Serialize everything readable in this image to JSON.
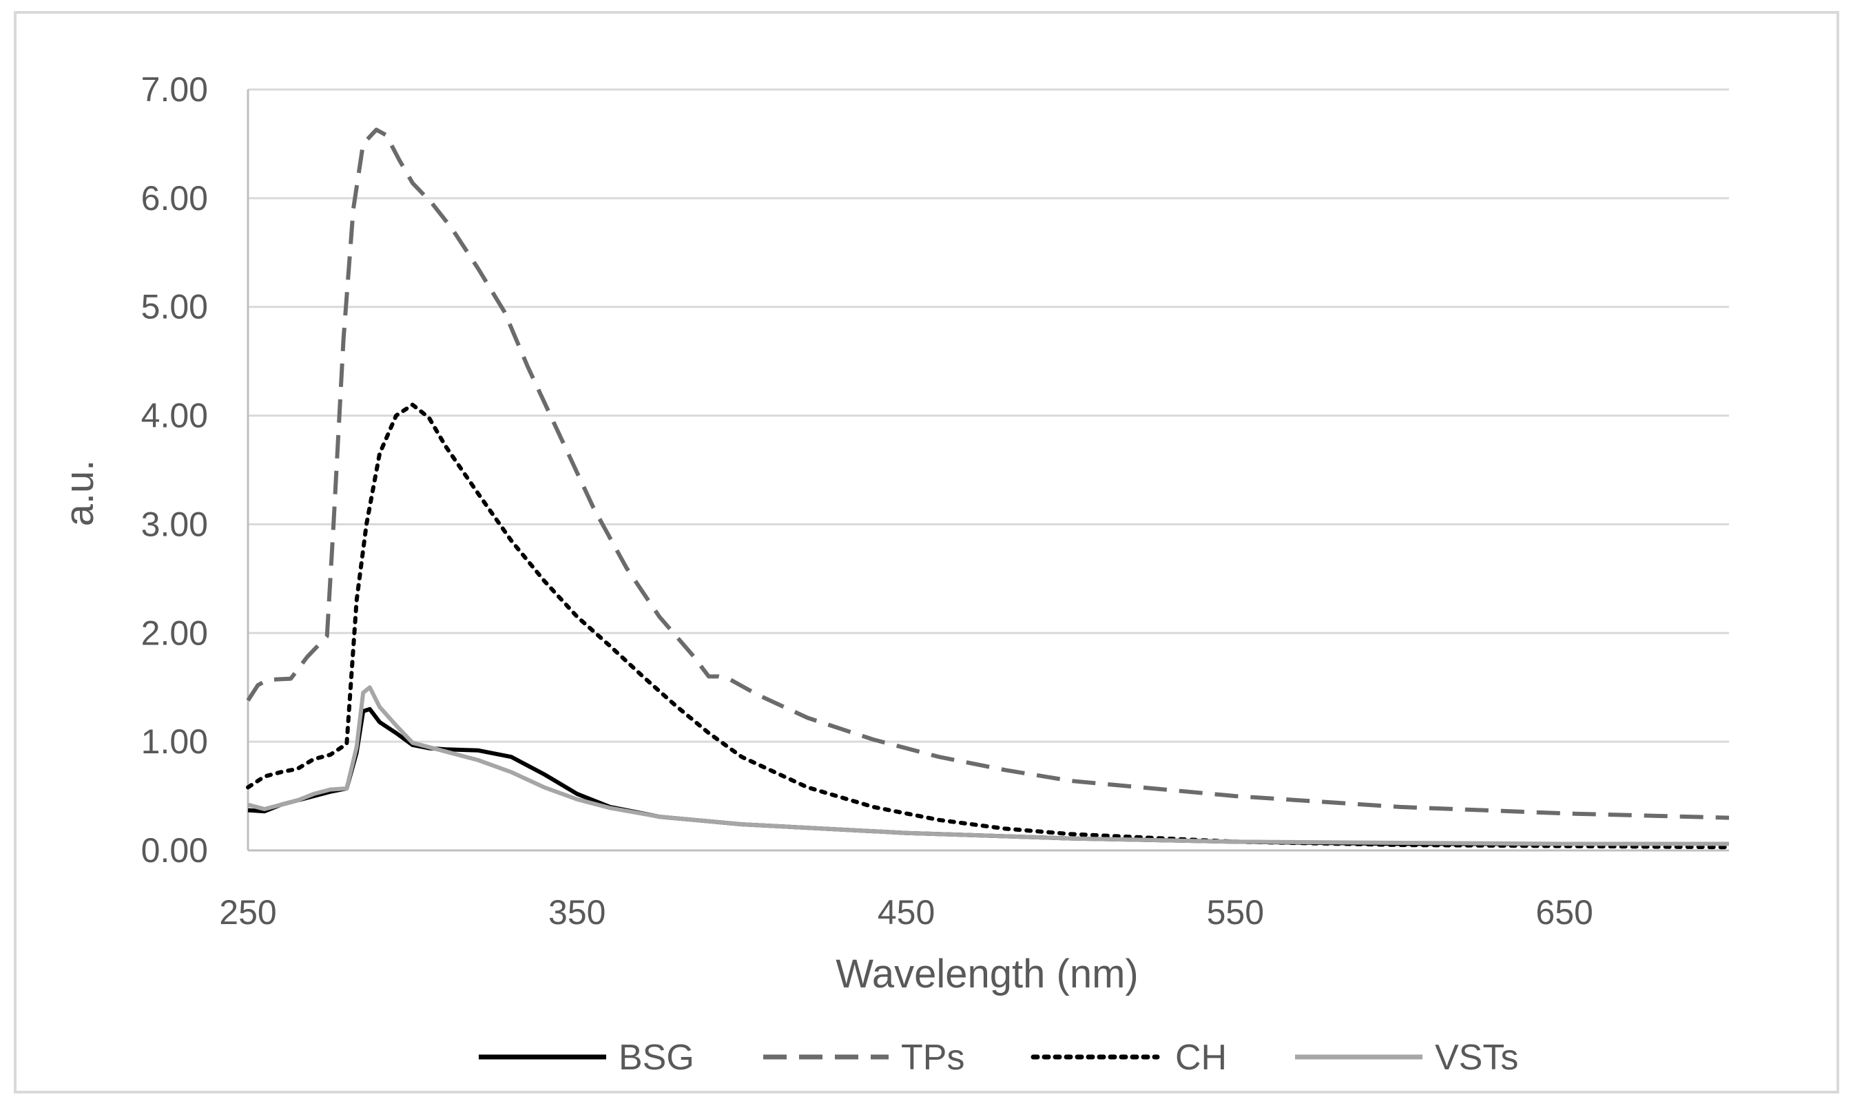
{
  "chart_data": {
    "type": "line",
    "title": "",
    "xlabel": "Wavelength (nm)",
    "ylabel": "a.u.",
    "xlim": [
      250,
      700
    ],
    "ylim": [
      0,
      7
    ],
    "x_ticks": [
      250,
      350,
      450,
      550,
      650
    ],
    "x_tick_labels": [
      "250",
      "350",
      "450",
      "550",
      "650"
    ],
    "y_ticks": [
      0,
      1,
      2,
      3,
      4,
      5,
      6,
      7
    ],
    "y_tick_labels": [
      "0.00",
      "1.00",
      "2.00",
      "3.00",
      "4.00",
      "5.00",
      "6.00",
      "7.00"
    ],
    "grid": "horizontal",
    "legend_position": "bottom",
    "series": [
      {
        "name": "BSG",
        "color": "#000000",
        "dash": "solid",
        "points": [
          [
            250,
            0.37
          ],
          [
            255,
            0.36
          ],
          [
            260,
            0.42
          ],
          [
            265,
            0.46
          ],
          [
            270,
            0.5
          ],
          [
            275,
            0.54
          ],
          [
            280,
            0.57
          ],
          [
            283,
            0.9
          ],
          [
            285,
            1.28
          ],
          [
            287,
            1.3
          ],
          [
            290,
            1.18
          ],
          [
            295,
            1.08
          ],
          [
            300,
            0.97
          ],
          [
            305,
            0.94
          ],
          [
            310,
            0.93
          ],
          [
            320,
            0.92
          ],
          [
            330,
            0.86
          ],
          [
            340,
            0.7
          ],
          [
            350,
            0.52
          ],
          [
            360,
            0.4
          ],
          [
            375,
            0.31
          ],
          [
            400,
            0.24
          ],
          [
            450,
            0.16
          ],
          [
            500,
            0.11
          ],
          [
            550,
            0.08
          ],
          [
            600,
            0.06
          ],
          [
            650,
            0.06
          ],
          [
            700,
            0.06
          ]
        ]
      },
      {
        "name": "TPs",
        "color": "#6b6b6b",
        "dash": "dashed",
        "points": [
          [
            250,
            1.38
          ],
          [
            253,
            1.52
          ],
          [
            256,
            1.57
          ],
          [
            263,
            1.58
          ],
          [
            268,
            1.78
          ],
          [
            274,
            1.97
          ],
          [
            276,
            3.0
          ],
          [
            279,
            4.7
          ],
          [
            282,
            5.9
          ],
          [
            285,
            6.5
          ],
          [
            289,
            6.63
          ],
          [
            292,
            6.58
          ],
          [
            296,
            6.35
          ],
          [
            300,
            6.14
          ],
          [
            306,
            5.95
          ],
          [
            312,
            5.72
          ],
          [
            320,
            5.35
          ],
          [
            328,
            4.95
          ],
          [
            335,
            4.45
          ],
          [
            345,
            3.8
          ],
          [
            355,
            3.15
          ],
          [
            365,
            2.6
          ],
          [
            375,
            2.15
          ],
          [
            385,
            1.8
          ],
          [
            390,
            1.6
          ],
          [
            393,
            1.6
          ],
          [
            396,
            1.58
          ],
          [
            405,
            1.43
          ],
          [
            420,
            1.22
          ],
          [
            440,
            1.02
          ],
          [
            460,
            0.86
          ],
          [
            480,
            0.74
          ],
          [
            500,
            0.64
          ],
          [
            550,
            0.5
          ],
          [
            600,
            0.4
          ],
          [
            650,
            0.34
          ],
          [
            700,
            0.3
          ]
        ]
      },
      {
        "name": "CH",
        "color": "#000000",
        "dash": "dotted",
        "points": [
          [
            250,
            0.58
          ],
          [
            255,
            0.68
          ],
          [
            260,
            0.72
          ],
          [
            265,
            0.75
          ],
          [
            270,
            0.84
          ],
          [
            275,
            0.88
          ],
          [
            280,
            0.98
          ],
          [
            283,
            2.3
          ],
          [
            286,
            3.0
          ],
          [
            290,
            3.65
          ],
          [
            295,
            4.0
          ],
          [
            300,
            4.1
          ],
          [
            305,
            3.98
          ],
          [
            310,
            3.72
          ],
          [
            320,
            3.28
          ],
          [
            330,
            2.85
          ],
          [
            340,
            2.48
          ],
          [
            350,
            2.15
          ],
          [
            360,
            1.88
          ],
          [
            370,
            1.6
          ],
          [
            380,
            1.33
          ],
          [
            390,
            1.08
          ],
          [
            400,
            0.86
          ],
          [
            420,
            0.58
          ],
          [
            440,
            0.4
          ],
          [
            460,
            0.28
          ],
          [
            480,
            0.2
          ],
          [
            500,
            0.15
          ],
          [
            550,
            0.08
          ],
          [
            600,
            0.05
          ],
          [
            650,
            0.04
          ],
          [
            700,
            0.03
          ]
        ]
      },
      {
        "name": "VSTs",
        "color": "#a6a6a6",
        "dash": "solid",
        "points": [
          [
            250,
            0.42
          ],
          [
            255,
            0.38
          ],
          [
            260,
            0.42
          ],
          [
            265,
            0.46
          ],
          [
            270,
            0.52
          ],
          [
            275,
            0.56
          ],
          [
            280,
            0.57
          ],
          [
            283,
            0.95
          ],
          [
            285,
            1.45
          ],
          [
            287,
            1.5
          ],
          [
            290,
            1.32
          ],
          [
            295,
            1.15
          ],
          [
            300,
            0.99
          ],
          [
            310,
            0.91
          ],
          [
            320,
            0.83
          ],
          [
            330,
            0.72
          ],
          [
            340,
            0.58
          ],
          [
            350,
            0.47
          ],
          [
            360,
            0.39
          ],
          [
            375,
            0.31
          ],
          [
            400,
            0.24
          ],
          [
            450,
            0.16
          ],
          [
            500,
            0.11
          ],
          [
            550,
            0.08
          ],
          [
            600,
            0.07
          ],
          [
            650,
            0.06
          ],
          [
            700,
            0.06
          ]
        ]
      }
    ]
  }
}
